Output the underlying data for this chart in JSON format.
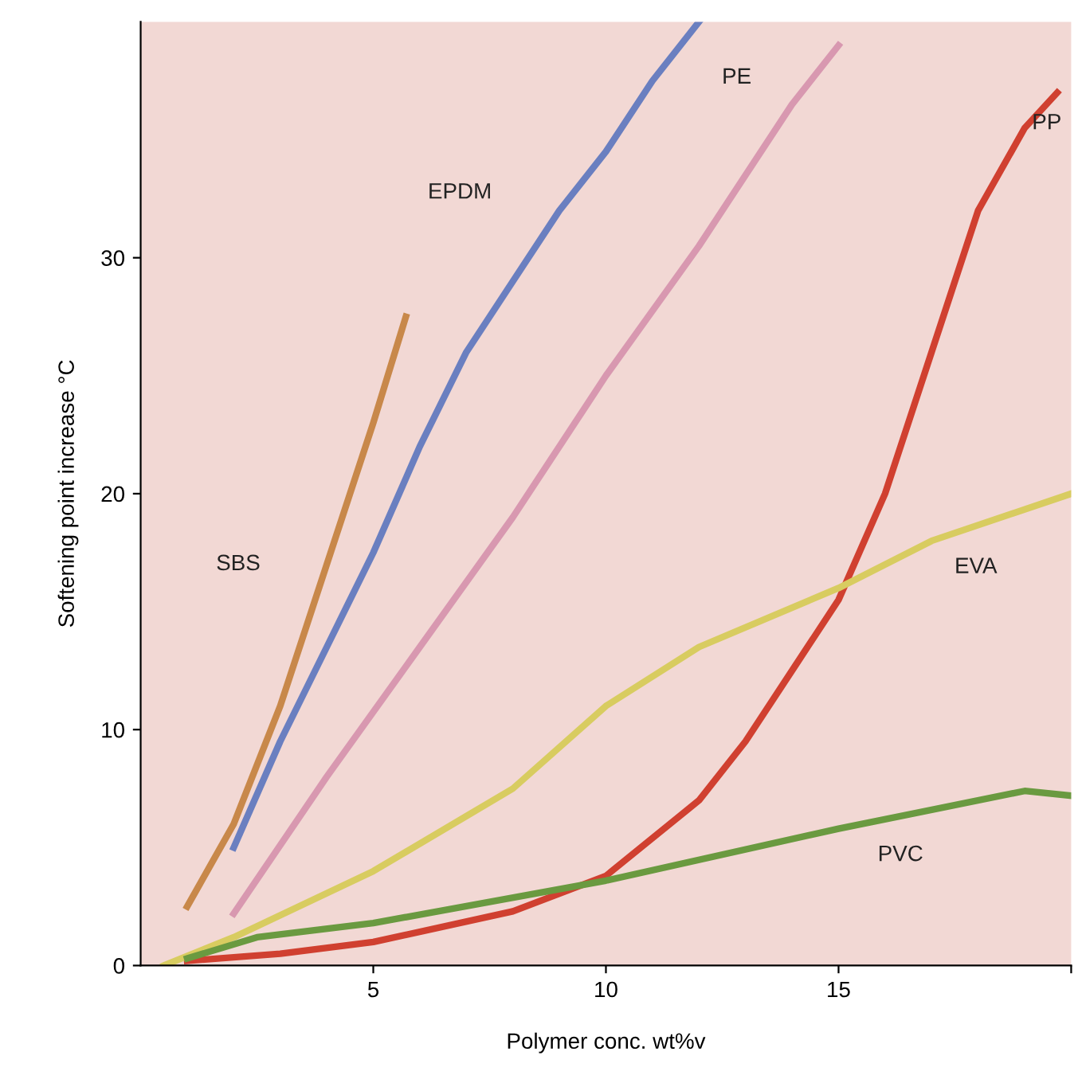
{
  "chart_data": {
    "type": "line",
    "xlabel": "Polymer conc. wt%v",
    "ylabel": "Softening point increase °C",
    "xlim": [
      0,
      20
    ],
    "ylim": [
      0,
      40
    ],
    "xticks": [
      5,
      10,
      15,
      {
        "value": 20,
        "label": null
      }
    ],
    "yticks": [
      0,
      10,
      20,
      30
    ],
    "grid": false,
    "legend": false,
    "marker": "none",
    "line_style": "solid",
    "series": [
      {
        "name": "SBS",
        "color": "#c8884a",
        "x": [
          1,
          2,
          3,
          4,
          5,
          5.7
        ],
        "values": [
          2.5,
          6,
          11,
          17,
          23,
          27.5
        ]
      },
      {
        "name": "EPDM",
        "color": "#6a7fc0",
        "x": [
          2,
          3,
          4,
          5,
          6,
          7,
          8,
          9,
          10,
          11,
          12
        ],
        "values": [
          5,
          9.5,
          13.5,
          17.5,
          22,
          26,
          29,
          32,
          34.5,
          37.5,
          40
        ]
      },
      {
        "name": "PE",
        "color": "#d898b0",
        "x": [
          2,
          4,
          6,
          8,
          10,
          12,
          14,
          15
        ],
        "values": [
          2.2,
          8,
          13.5,
          19,
          25,
          30.5,
          36.5,
          39
        ]
      },
      {
        "name": "PP",
        "color": "#d04030",
        "x": [
          1,
          3,
          5,
          8,
          10,
          12,
          13,
          14,
          15,
          16,
          17,
          18,
          19,
          19.7
        ],
        "values": [
          0.2,
          0.5,
          1,
          2.3,
          3.8,
          7,
          9.5,
          12.5,
          15.5,
          20,
          26,
          32,
          35.5,
          37
        ]
      },
      {
        "name": "EVA",
        "color": "#d8cc60",
        "x": [
          0.5,
          2,
          5,
          8,
          10,
          12,
          15,
          17,
          20
        ],
        "values": [
          0,
          1.2,
          4,
          7.5,
          11,
          13.5,
          16,
          18,
          20
        ]
      },
      {
        "name": "PVC",
        "color": "#6a9a40",
        "x": [
          1,
          2.5,
          5,
          10,
          15,
          19,
          20
        ],
        "values": [
          0.3,
          1.2,
          1.8,
          3.6,
          5.8,
          7.4,
          7.2
        ]
      }
    ]
  }
}
